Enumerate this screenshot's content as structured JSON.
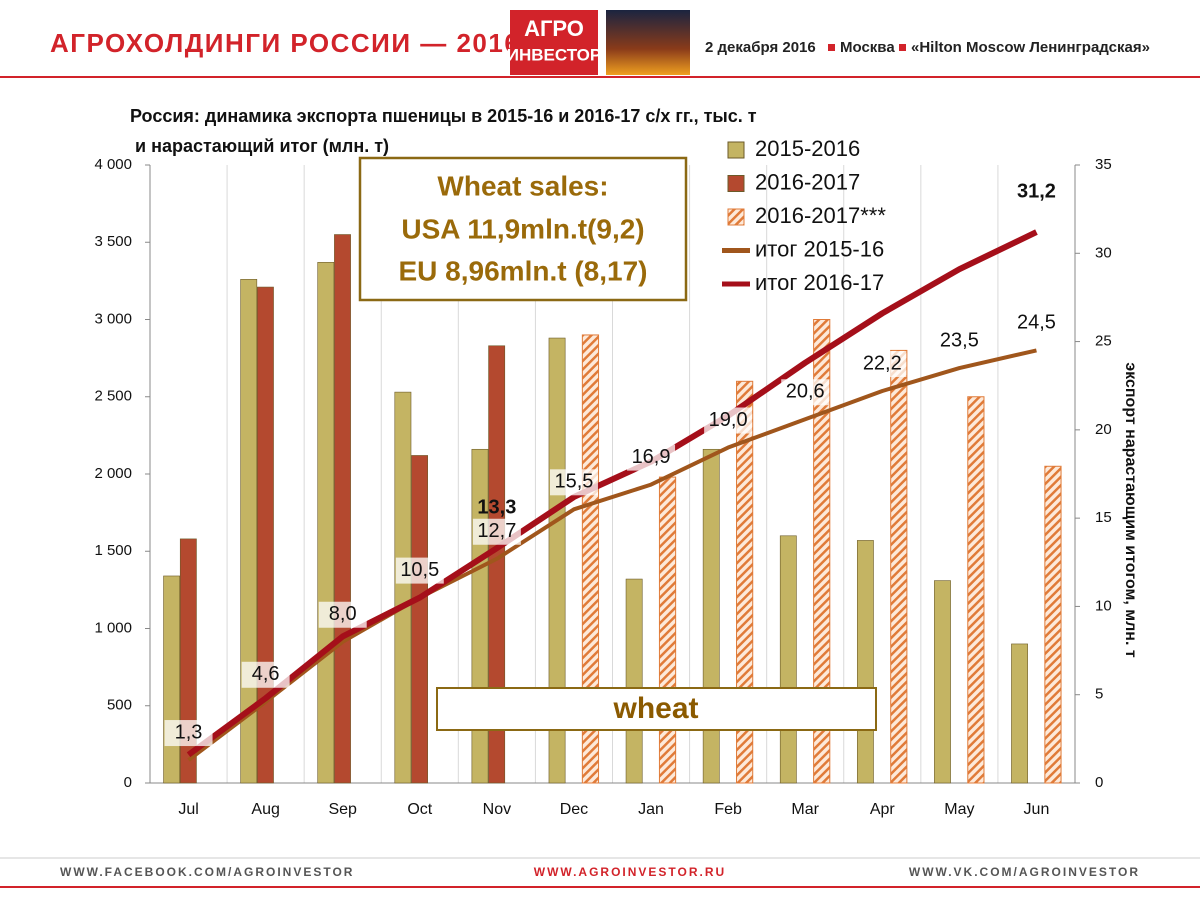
{
  "header": {
    "title": "АГРОХОЛДИНГИ РОССИИ — 2016",
    "logo_top": "АГРО",
    "logo_bottom": "ИНВЕСТОР",
    "date": "2 декабря 2016",
    "city": "Москва",
    "venue": "«Hilton Moscow Ленинградская»"
  },
  "chart_data": {
    "type": "bar",
    "title_lines": [
      "Россия: динамика экспорта пшеницы в 2015-16 и 2016-17 с/х гг., тыс. т",
      "и нарастающий итог (млн. т)"
    ],
    "y2_label": "экспорт нарастающим итогом, млн. т",
    "categories": [
      "Jul",
      "Aug",
      "Sep",
      "Oct",
      "Nov",
      "Dec",
      "Jan",
      "Feb",
      "Mar",
      "Apr",
      "May",
      "Jun"
    ],
    "ylim": [
      0,
      4000
    ],
    "yticks": [
      0,
      500,
      {
        "value": 1000,
        "label": "1 000"
      },
      {
        "value": 1500,
        "label": "1 500"
      },
      {
        "value": 2000,
        "label": "2 000"
      },
      {
        "value": 2500,
        "label": "2 500"
      },
      {
        "value": 3000,
        "label": "3 000"
      },
      {
        "value": 3500,
        "label": "3 500"
      },
      {
        "value": 4000,
        "label": "4 000"
      }
    ],
    "y2lim": [
      0,
      35
    ],
    "y2ticks": [
      0,
      5,
      10,
      15,
      20,
      25,
      30,
      35
    ],
    "series": [
      {
        "name": "2015-2016",
        "type": "bar",
        "color": "#c4b463",
        "values": [
          1340,
          3260,
          3370,
          2530,
          2160,
          2880,
          1320,
          2160,
          1600,
          1570,
          1310,
          900
        ]
      },
      {
        "name": "2016-2017",
        "type": "bar",
        "color": "#b4492f",
        "values": [
          1580,
          3210,
          3550,
          2120,
          2830,
          null,
          null,
          null,
          null,
          null,
          null,
          null
        ]
      },
      {
        "name": "2016-2017***",
        "type": "bar",
        "hatch": true,
        "color": "#e07b39",
        "values": [
          null,
          null,
          null,
          null,
          null,
          2900,
          1980,
          2600,
          3000,
          2800,
          2500,
          2050
        ]
      },
      {
        "name": "итог 2015-16",
        "type": "line",
        "axis": "y2",
        "color": "#a0561c",
        "values": [
          1.3,
          4.6,
          8.0,
          10.5,
          12.7,
          15.5,
          16.9,
          19.0,
          20.6,
          22.2,
          23.5,
          24.5
        ],
        "value_labels": [
          "1,3",
          "4,6",
          "8,0",
          "10,5",
          "12,7",
          "15,5",
          "16,9",
          "19,0",
          "20,6",
          "22,2",
          "23,5",
          "24,5"
        ]
      },
      {
        "name": "итог 2016-17",
        "type": "line",
        "axis": "y2",
        "color": "#a50f1a",
        "values": [
          1.6,
          4.8,
          8.3,
          10.5,
          13.3,
          16.2,
          18.2,
          20.8,
          23.8,
          26.6,
          29.1,
          31.2
        ],
        "value_labels": [
          null,
          null,
          null,
          null,
          "13,3",
          null,
          null,
          null,
          null,
          null,
          null,
          "31,2"
        ]
      }
    ],
    "annotations": {
      "sales_lines": [
        "Wheat sales:",
        "USA 11,9mln.t(9,2)",
        "EU 8,96mln.t (8,17)"
      ],
      "commodity": "wheat"
    }
  },
  "footer": {
    "left": "WWW.FACEBOOK.COM/AGROINVESTOR",
    "center": "WWW.AGROINVESTOR.RU",
    "right": "WWW.VK.COM/AGROINVESTOR"
  }
}
